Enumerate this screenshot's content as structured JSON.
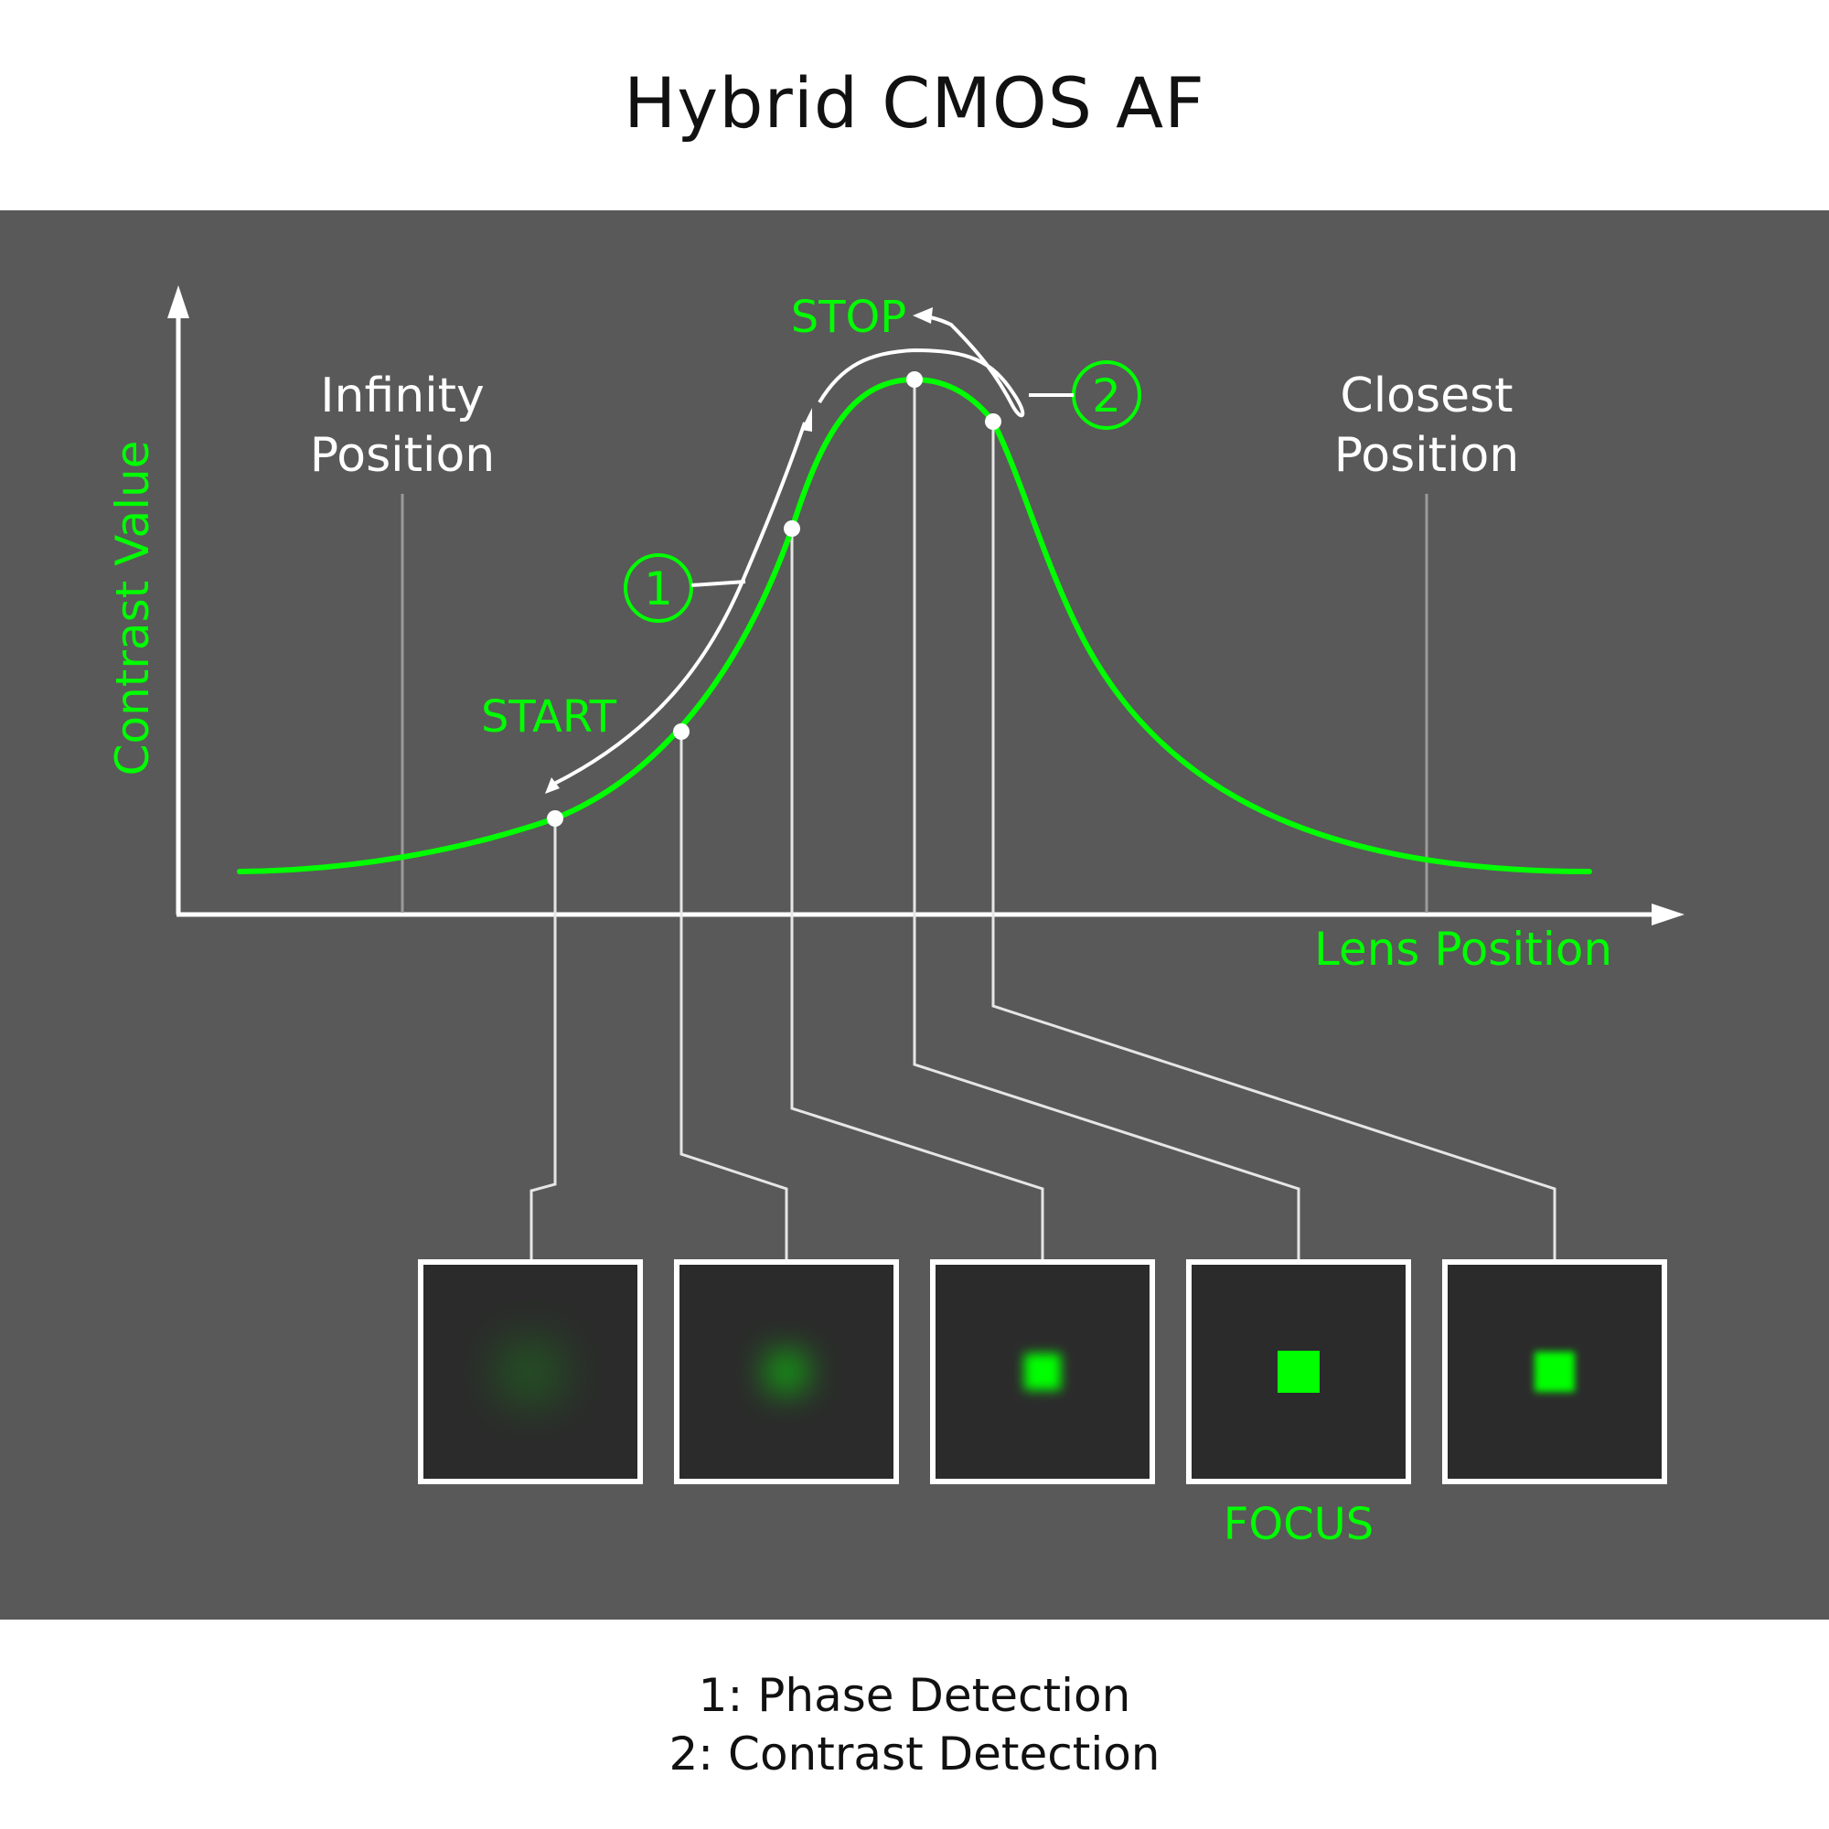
{
  "title": "Hybrid CMOS AF",
  "axes": {
    "y_label": "Contrast Value",
    "x_label": "Lens Position"
  },
  "markers": {
    "infinity": [
      "Infinity",
      "Position"
    ],
    "closest": [
      "Closest",
      "Position"
    ]
  },
  "labels": {
    "start": "START",
    "stop": "STOP",
    "focus": "FOCUS",
    "step1": "1",
    "step2": "2"
  },
  "thumbnails": [
    {
      "blur": 60,
      "size": 40,
      "opacity": 0.55
    },
    {
      "blur": 30,
      "size": 40,
      "opacity": 0.65
    },
    {
      "blur": 10,
      "size": 40,
      "opacity": 1
    },
    {
      "blur": 0,
      "size": 46,
      "opacity": 1
    },
    {
      "blur": 6,
      "size": 44,
      "opacity": 1
    }
  ],
  "legend": [
    "1: Phase Detection",
    "2: Contrast Detection"
  ],
  "colors": {
    "accent": "#00ff00",
    "panel": "#595959",
    "thumb_bg": "#2b2b2b",
    "line": "#e6e6e6"
  }
}
